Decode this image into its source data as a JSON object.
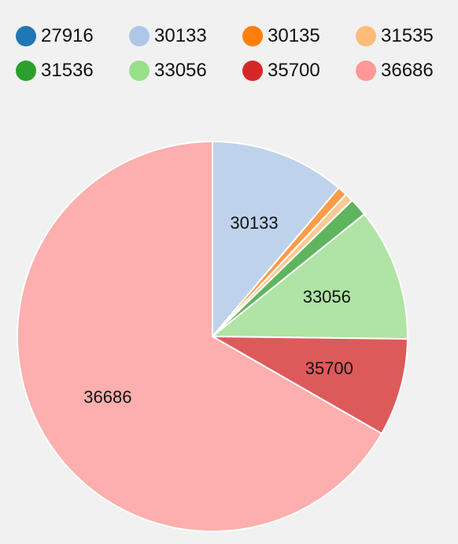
{
  "chart_data": {
    "type": "pie",
    "title": "",
    "legend_position": "top",
    "categories": [
      "27916",
      "30133",
      "30135",
      "31535",
      "31536",
      "33056",
      "35700",
      "36686"
    ],
    "values": [
      0.0,
      11.2,
      0.8,
      0.7,
      1.5,
      11.0,
      8.1,
      66.7
    ],
    "colors": [
      "#1f77b4",
      "#aec7e8",
      "#ff7f0e",
      "#ffbb78",
      "#2ca02c",
      "#98df8a",
      "#d62728",
      "#ff9896"
    ],
    "slice_fill_opacity": 0.75,
    "slice_labels": [
      "",
      "30133",
      "",
      "",
      "",
      "33056",
      "35700",
      "36686"
    ]
  }
}
